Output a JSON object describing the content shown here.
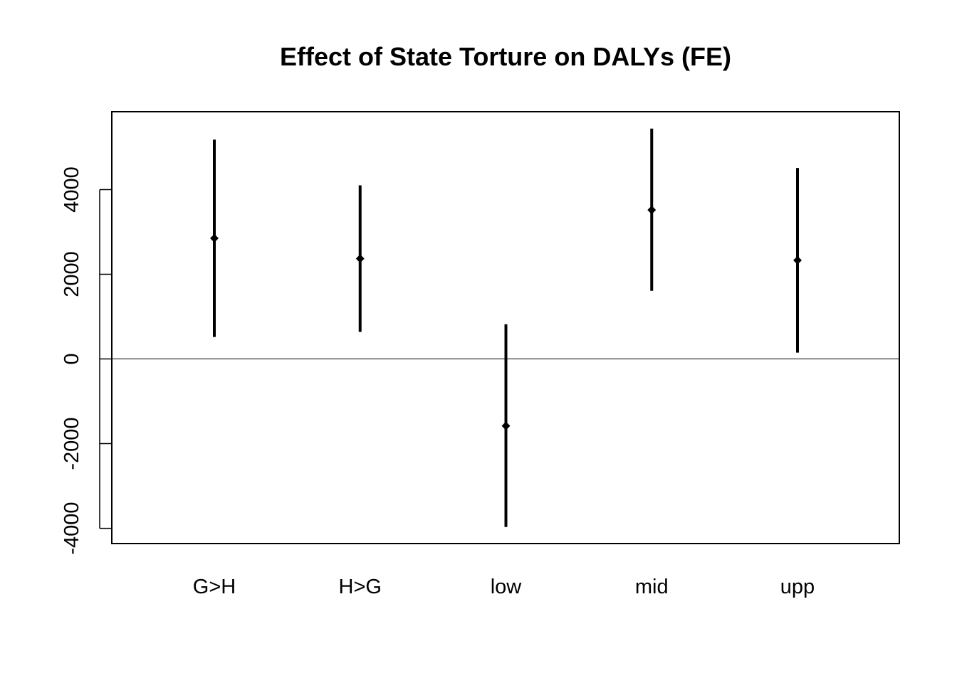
{
  "chart_data": {
    "type": "errorbar",
    "title": "Effect of State Torture on DALYs (FE)",
    "xlabel": "",
    "ylabel": "",
    "categories": [
      "G>H",
      "H>G",
      "low",
      "mid",
      "upp"
    ],
    "estimates": [
      2850,
      2370,
      -1580,
      3520,
      2330
    ],
    "lower": [
      520,
      640,
      -3970,
      1610,
      150
    ],
    "upper": [
      5180,
      4100,
      820,
      5440,
      4510
    ],
    "ylim": [
      -4360,
      5840
    ],
    "yticks": [
      -4000,
      -2000,
      0,
      2000,
      4000
    ],
    "ytick_labels": [
      "-4000",
      "-2000",
      "0",
      "2000",
      "4000"
    ],
    "reference_line": 0,
    "grid": false,
    "legend": "none",
    "colors": {
      "mark": "#000000",
      "background": "#ffffff"
    }
  }
}
